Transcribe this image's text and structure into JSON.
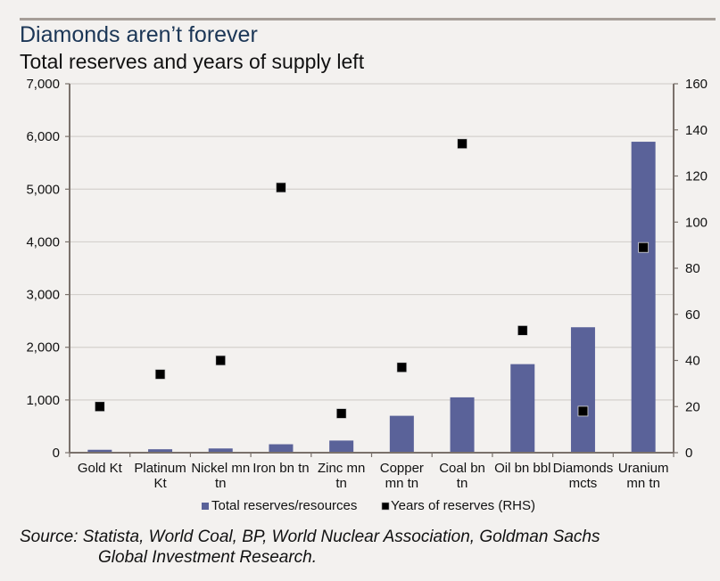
{
  "header": {
    "title": "Diamonds aren’t forever",
    "subtitle": "Total reserves and years of supply left"
  },
  "source": {
    "line1": "Source: Statista, World Coal, BP, World Nuclear Association, Goldman Sachs",
    "line2": "Global Investment Research."
  },
  "colors": {
    "bar": "#5a6299",
    "marker": "#000000",
    "gridline": "#d4d1cd",
    "axis": "#7a716b",
    "title": "#1b3656"
  },
  "chart_data": {
    "type": "bar",
    "title": "Diamonds aren’t forever",
    "subtitle": "Total reserves and years of supply left",
    "xlabel": "",
    "ylabel": "",
    "categories": [
      [
        "Gold Kt"
      ],
      [
        "Platinum",
        "Kt"
      ],
      [
        "Nickel mn",
        "tn"
      ],
      [
        "Iron bn tn"
      ],
      [
        "Zinc mn",
        "tn"
      ],
      [
        "Copper",
        "mn tn"
      ],
      [
        "Coal bn",
        "tn"
      ],
      [
        "Oil bn bbl"
      ],
      [
        "Diamonds",
        "mcts"
      ],
      [
        "Uranium",
        "mn tn"
      ]
    ],
    "series": [
      {
        "name": "Total reserves/resources",
        "type": "bar",
        "axis": "left",
        "values": [
          55,
          65,
          80,
          160,
          230,
          700,
          1050,
          1680,
          2380,
          5900
        ]
      },
      {
        "name": "Years of reserves (RHS)",
        "type": "scatter",
        "marker": "square",
        "axis": "right",
        "values": [
          20,
          34,
          40,
          115,
          17,
          37,
          134,
          53,
          18,
          89
        ]
      }
    ],
    "y_left": {
      "ylim": [
        0,
        7000
      ],
      "ticks": [
        0,
        1000,
        2000,
        3000,
        4000,
        5000,
        6000,
        7000
      ],
      "tick_labels": [
        "0",
        "1,000",
        "2,000",
        "3,000",
        "4,000",
        "5,000",
        "6,000",
        "7,000"
      ]
    },
    "y_right": {
      "ylim": [
        0,
        160
      ],
      "ticks": [
        0,
        20,
        40,
        60,
        80,
        100,
        120,
        140,
        160
      ],
      "tick_labels": [
        "0",
        "20",
        "40",
        "60",
        "80",
        "100",
        "120",
        "140",
        "160"
      ]
    },
    "grid": true,
    "legend": {
      "position": "bottom",
      "entries": [
        "Total reserves/resources",
        "Years of reserves (RHS)"
      ]
    }
  }
}
